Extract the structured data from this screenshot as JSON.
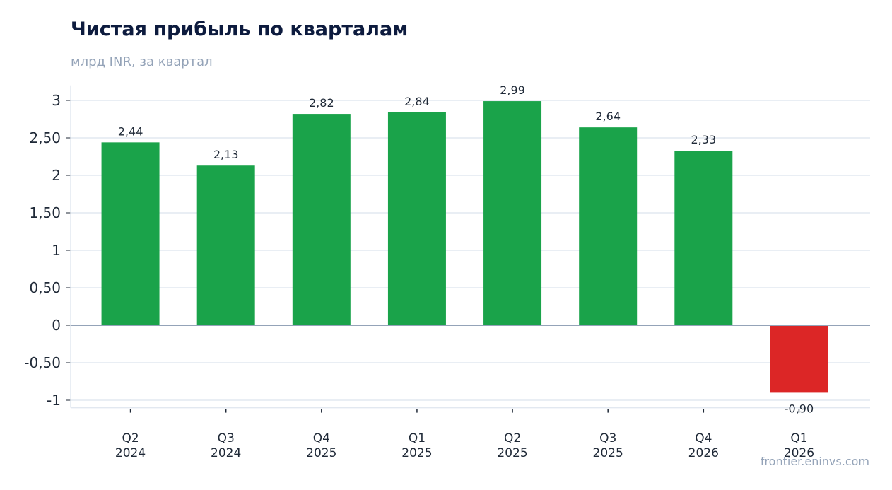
{
  "header": {
    "title": "Чистая прибыль по кварталам",
    "subtitle": "млрд INR, за квартал"
  },
  "footer": {
    "source": "frontier.eninvs.com"
  },
  "chart_data": {
    "type": "bar",
    "title": "Чистая прибыль по кварталам",
    "subtitle": "млрд INR, за квартал",
    "categories": [
      [
        "Q2",
        "2024"
      ],
      [
        "Q3",
        "2024"
      ],
      [
        "Q4",
        "2025"
      ],
      [
        "Q1",
        "2025"
      ],
      [
        "Q2",
        "2025"
      ],
      [
        "Q3",
        "2025"
      ],
      [
        "Q4",
        "2026"
      ],
      [
        "Q1",
        "2026"
      ]
    ],
    "values": [
      2.44,
      2.13,
      2.82,
      2.84,
      2.99,
      2.64,
      2.33,
      -0.9
    ],
    "value_labels": [
      "2,44",
      "2,13",
      "2,82",
      "2,84",
      "2,99",
      "2,64",
      "2,33",
      "-0,90"
    ],
    "yticks": [
      3,
      2.5,
      2,
      1.5,
      1,
      0.5,
      0,
      -0.5,
      -1
    ],
    "ytick_labels": [
      "3",
      "2,50",
      "2",
      "1,50",
      "1",
      "0,50",
      "0",
      "-0,50",
      "-1"
    ],
    "ylim": [
      -1.1,
      3.2
    ],
    "grid": true,
    "colors": {
      "positive": "#1aa34a",
      "negative": "#dc2626",
      "grid": "#e2e8f0",
      "zero_line": "#94a3b8"
    }
  }
}
